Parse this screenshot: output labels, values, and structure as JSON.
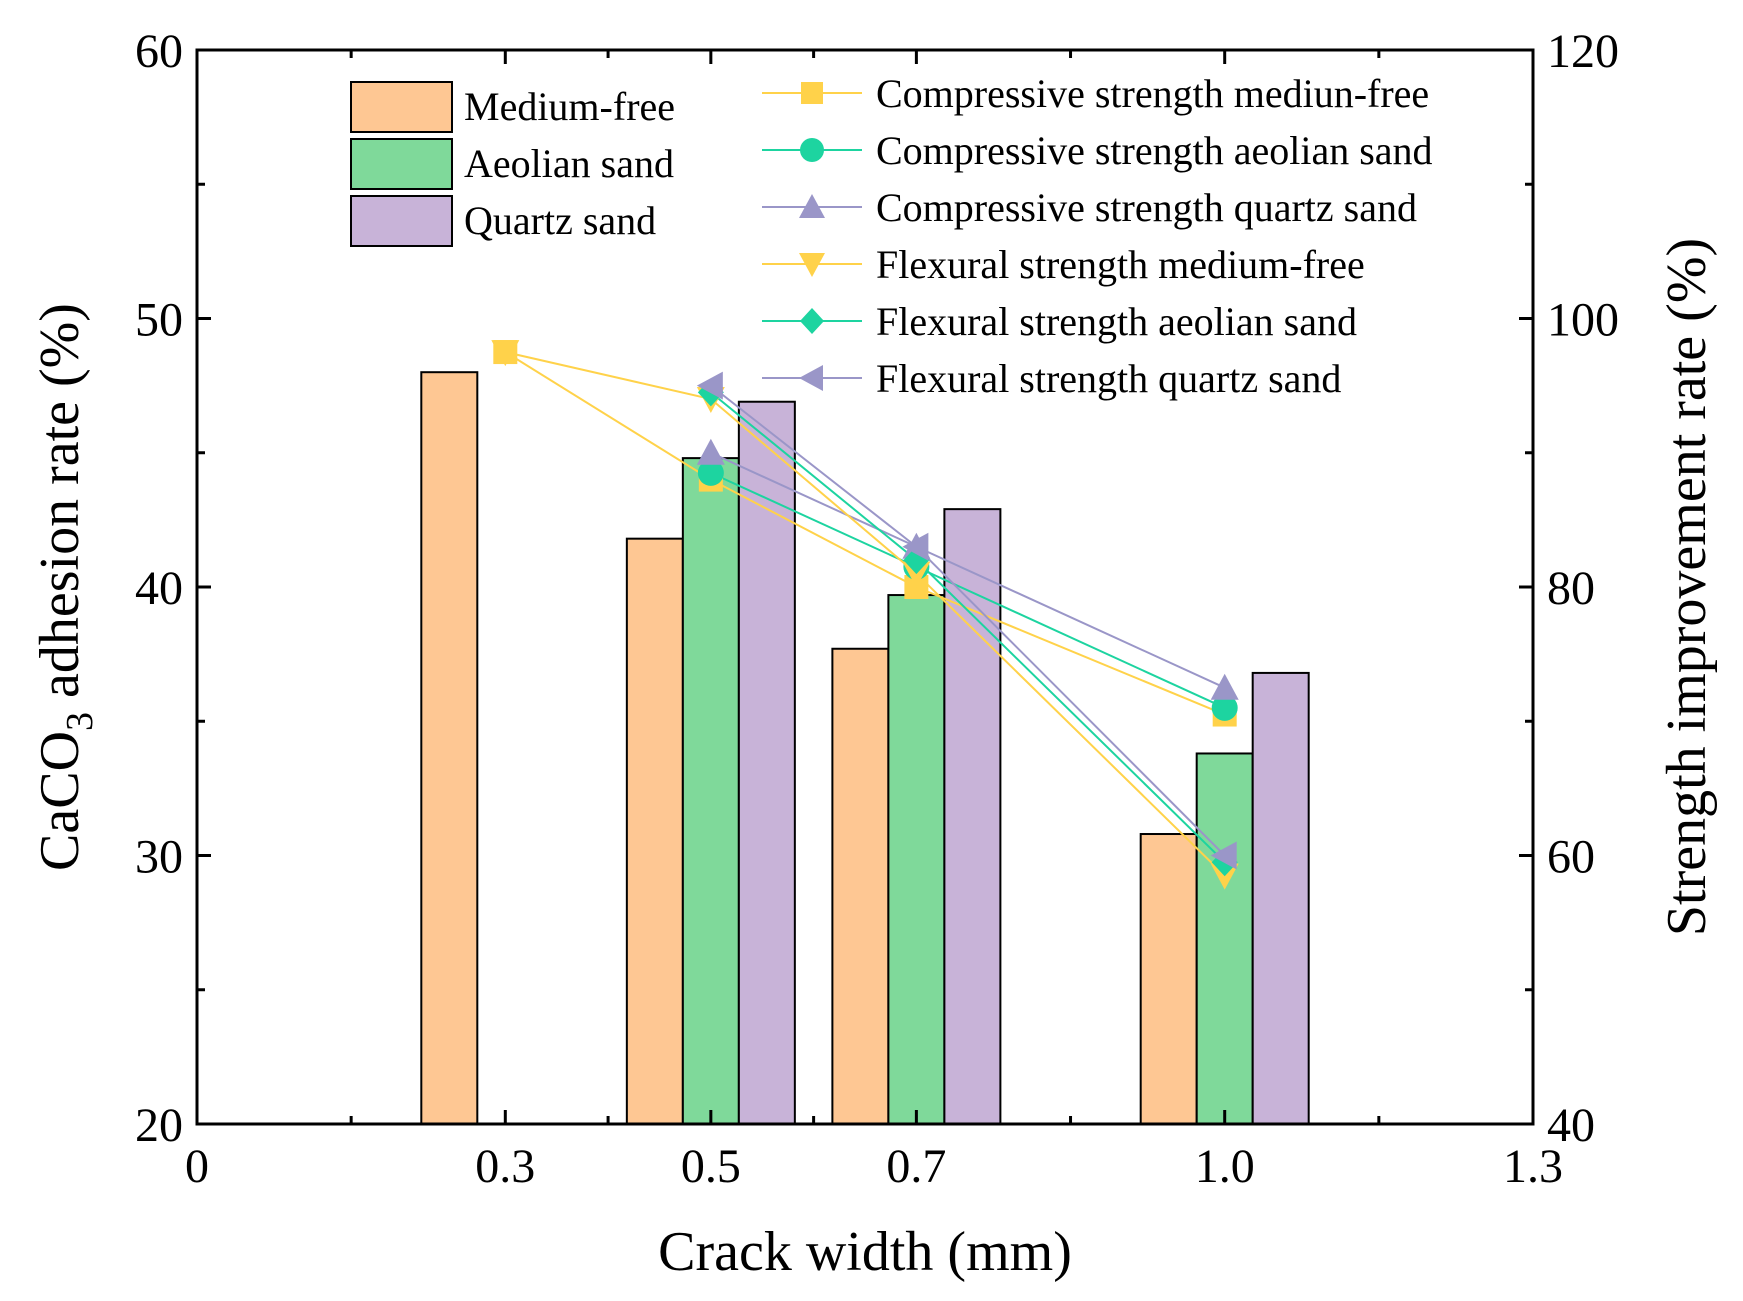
{
  "chart_data": {
    "type": "bar+line",
    "x": {
      "label": "Crack width (mm)",
      "range": [
        0,
        1.3
      ],
      "ticks": [
        {
          "value": 0,
          "label": "0"
        },
        {
          "value": 0.3,
          "label": "0.3"
        },
        {
          "value": 0.5,
          "label": "0.5"
        },
        {
          "value": 0.7,
          "label": "0.7"
        },
        {
          "value": 1.0,
          "label": "1.0"
        },
        {
          "value": 1.3,
          "label": "1.3"
        }
      ],
      "minor_ticks": [
        0.15,
        0.4,
        0.6,
        0.85,
        1.15
      ]
    },
    "y_left": {
      "label_main": "CaCO",
      "label_sub": "3",
      "label_rest": " adhesion rate (%)",
      "range": [
        20,
        60
      ],
      "ticks": [
        20,
        30,
        40,
        50,
        60
      ],
      "minor_ticks": [
        25,
        35,
        45,
        55
      ]
    },
    "y_right": {
      "label": "Strength improvement rate (%)",
      "range": [
        40,
        120
      ],
      "ticks": [
        40,
        60,
        80,
        100,
        120
      ],
      "minor_ticks": [
        50,
        70,
        90,
        110
      ]
    },
    "bar_series": [
      {
        "name": "Medium-free",
        "color": "#FEC793",
        "points": [
          [
            0.3,
            48.0
          ],
          [
            0.5,
            41.8
          ],
          [
            0.7,
            37.7
          ],
          [
            1.0,
            30.8
          ]
        ]
      },
      {
        "name": "Aeolian sand",
        "color": "#7FD99A",
        "points": [
          [
            0.5,
            44.8
          ],
          [
            0.7,
            39.7
          ],
          [
            1.0,
            33.8
          ]
        ]
      },
      {
        "name": "Quartz sand",
        "color": "#C8B3D8",
        "points": [
          [
            0.5,
            46.9
          ],
          [
            0.7,
            42.9
          ],
          [
            1.0,
            36.8
          ]
        ]
      }
    ],
    "line_series": [
      {
        "name": "Compressive strength mediun-free",
        "color": "#FFD24A",
        "marker": "square",
        "points": [
          [
            0.3,
            97.5
          ],
          [
            0.5,
            88.0
          ],
          [
            0.7,
            80.0
          ],
          [
            1.0,
            70.5
          ]
        ]
      },
      {
        "name": "Compressive strength aeolian sand",
        "color": "#1DD4A0",
        "marker": "circle",
        "points": [
          [
            0.5,
            88.5
          ],
          [
            0.7,
            81.5
          ],
          [
            1.0,
            71.0
          ]
        ]
      },
      {
        "name": "Compressive strength quartz sand",
        "color": "#9A96C8",
        "marker": "triangle-up",
        "points": [
          [
            0.5,
            90.0
          ],
          [
            0.7,
            83.0
          ],
          [
            1.0,
            72.5
          ]
        ]
      },
      {
        "name": "Flexural strength medium-free",
        "color": "#FFD24A",
        "marker": "triangle-down",
        "points": [
          [
            0.3,
            97.5
          ],
          [
            0.5,
            94.0
          ],
          [
            0.7,
            81.0
          ],
          [
            1.0,
            58.5
          ]
        ]
      },
      {
        "name": "Flexural strength aeolian sand",
        "color": "#1DD4A0",
        "marker": "diamond",
        "points": [
          [
            0.5,
            94.5
          ],
          [
            0.7,
            82.0
          ],
          [
            1.0,
            59.5
          ]
        ]
      },
      {
        "name": "Flexural strength quartz sand",
        "color": "#9A96C8",
        "marker": "triangle-left",
        "points": [
          [
            0.5,
            95.0
          ],
          [
            0.7,
            83.0
          ],
          [
            1.0,
            60.0
          ]
        ]
      }
    ]
  }
}
